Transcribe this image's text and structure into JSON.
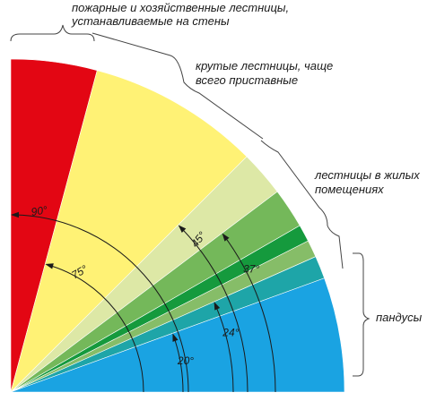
{
  "diagram": {
    "sectors": [
      {
        "id": "red",
        "from_deg": 75,
        "to_deg": 90,
        "color": "#e30613"
      },
      {
        "id": "yellow",
        "from_deg": 45,
        "to_deg": 75,
        "color": "#fff275"
      },
      {
        "id": "light-green",
        "from_deg": 37,
        "to_deg": 45,
        "color": "#dde8a6"
      },
      {
        "id": "mid-green",
        "from_deg": 30,
        "to_deg": 37,
        "color": "#74b85a"
      },
      {
        "id": "dark-green",
        "from_deg": 27,
        "to_deg": 30,
        "color": "#159a3d"
      },
      {
        "id": "soft-green",
        "from_deg": 24,
        "to_deg": 27,
        "color": "#86bd68"
      },
      {
        "id": "teal",
        "from_deg": 20,
        "to_deg": 24,
        "color": "#1ea5a8"
      },
      {
        "id": "blue",
        "from_deg": 0,
        "to_deg": 20,
        "color": "#1aa3e2"
      }
    ],
    "angle_arcs": [
      {
        "id": "90",
        "deg": 90,
        "label": "90°",
        "label_deg": 81
      },
      {
        "id": "75",
        "deg": 75,
        "label": "75°",
        "label_deg": 60
      },
      {
        "id": "45",
        "deg": 45,
        "label": "45°",
        "label_deg": 39
      },
      {
        "id": "37",
        "deg": 37,
        "label": "37°",
        "label_deg": 27
      },
      {
        "id": "24",
        "deg": 24,
        "label": "24°",
        "label_deg": 15
      },
      {
        "id": "20",
        "deg": 20,
        "label": "20°",
        "label_deg": 10
      }
    ],
    "captions": {
      "fire": {
        "line1": "пожарные и хозяйственные лестницы,",
        "line2": "устанавливаемые на стены"
      },
      "steep": {
        "line1": "крутые лестницы, чаще",
        "line2": "всего приставные"
      },
      "residential": {
        "line1": "лестницы в жилых",
        "line2": "помещениях"
      },
      "ramps": {
        "line1": "пандусы"
      }
    }
  }
}
